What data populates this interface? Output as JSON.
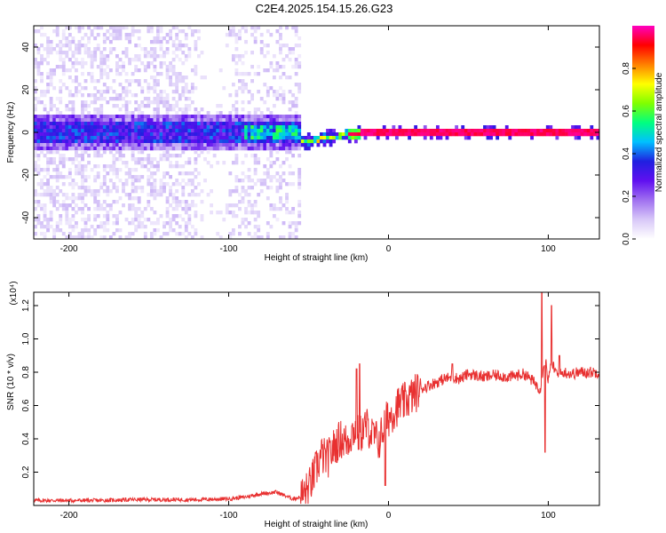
{
  "title": "C2E4.2025.154.15.26.G23",
  "chart_data": [
    {
      "type": "heatmap",
      "xlabel": "Height of straight line (km)",
      "ylabel": "Frequency (Hz)",
      "xlim": [
        -222,
        132
      ],
      "ylim": [
        -50,
        50
      ],
      "xticks": [
        -200,
        -100,
        0,
        100
      ],
      "yticks": [
        -40,
        -20,
        0,
        20,
        40
      ],
      "colorbar": {
        "label": "Normalized spectral amplitude",
        "range": [
          0,
          1
        ],
        "ticks": [
          "0.0",
          "0.2",
          "0.4",
          "0.6",
          "0.8"
        ],
        "colors": [
          "#ffffff",
          "#d8c8f8",
          "#a070f0",
          "#6010f0",
          "#2020e0",
          "#00c0ff",
          "#00ff80",
          "#80ff00",
          "#ffff00",
          "#ff8000",
          "#ff0000",
          "#ff00c0"
        ]
      },
      "description": {
        "noise_region_x": [
          -222,
          -55
        ],
        "noise_band_center_hz": 0,
        "line_region_x": [
          -55,
          132
        ],
        "line_center_hz": [
          [
            -55,
            -4
          ],
          [
            -40,
            -3
          ],
          [
            -25,
            -1
          ],
          [
            -15,
            0
          ],
          [
            132,
            0
          ]
        ]
      }
    },
    {
      "type": "line",
      "xlabel": "Height of straight line (km)",
      "ylabel": "SNR (10 * v/v)",
      "yscale_label": "(x10⁴)",
      "xlim": [
        -222,
        132
      ],
      "ylim": [
        0,
        1.28
      ],
      "xticks": [
        -200,
        -100,
        0,
        100
      ],
      "yticks": [
        "0.2",
        "0.4",
        "0.6",
        "0.8",
        "1.0",
        "1.2"
      ],
      "color": "#e83030",
      "series": [
        {
          "x": [
            -222,
            -200,
            -180,
            -160,
            -140,
            -120,
            -100,
            -90,
            -80,
            -70,
            -65,
            -60,
            -55,
            -50,
            -46,
            -42,
            -38,
            -34,
            -30,
            -26,
            -22,
            -18,
            -14,
            -10,
            -6,
            -2,
            2,
            6,
            10,
            15,
            20,
            25,
            30,
            35,
            40,
            45,
            50,
            55,
            60,
            65,
            70,
            75,
            80,
            85,
            90,
            95,
            98,
            100,
            102,
            106,
            110,
            115,
            120,
            125,
            132
          ],
          "y": [
            0.03,
            0.03,
            0.03,
            0.035,
            0.035,
            0.035,
            0.04,
            0.05,
            0.07,
            0.08,
            0.06,
            0.04,
            0.05,
            0.1,
            0.2,
            0.3,
            0.28,
            0.35,
            0.4,
            0.38,
            0.45,
            0.42,
            0.48,
            0.43,
            0.38,
            0.5,
            0.55,
            0.6,
            0.62,
            0.66,
            0.7,
            0.72,
            0.74,
            0.76,
            0.77,
            0.76,
            0.79,
            0.78,
            0.77,
            0.78,
            0.78,
            0.77,
            0.78,
            0.79,
            0.75,
            0.7,
            0.9,
            0.75,
            0.85,
            0.78,
            0.8,
            0.79,
            0.8,
            0.8,
            0.8
          ]
        }
      ],
      "spikes": [
        [
          -20,
          0.82
        ],
        [
          -18,
          0.85
        ],
        [
          -10,
          0.5
        ],
        [
          -2,
          0.12
        ],
        [
          40,
          0.85
        ],
        [
          75,
          0.75
        ],
        [
          96,
          1.28
        ],
        [
          98,
          0.32
        ],
        [
          102,
          1.2
        ],
        [
          107,
          0.9
        ]
      ]
    }
  ]
}
